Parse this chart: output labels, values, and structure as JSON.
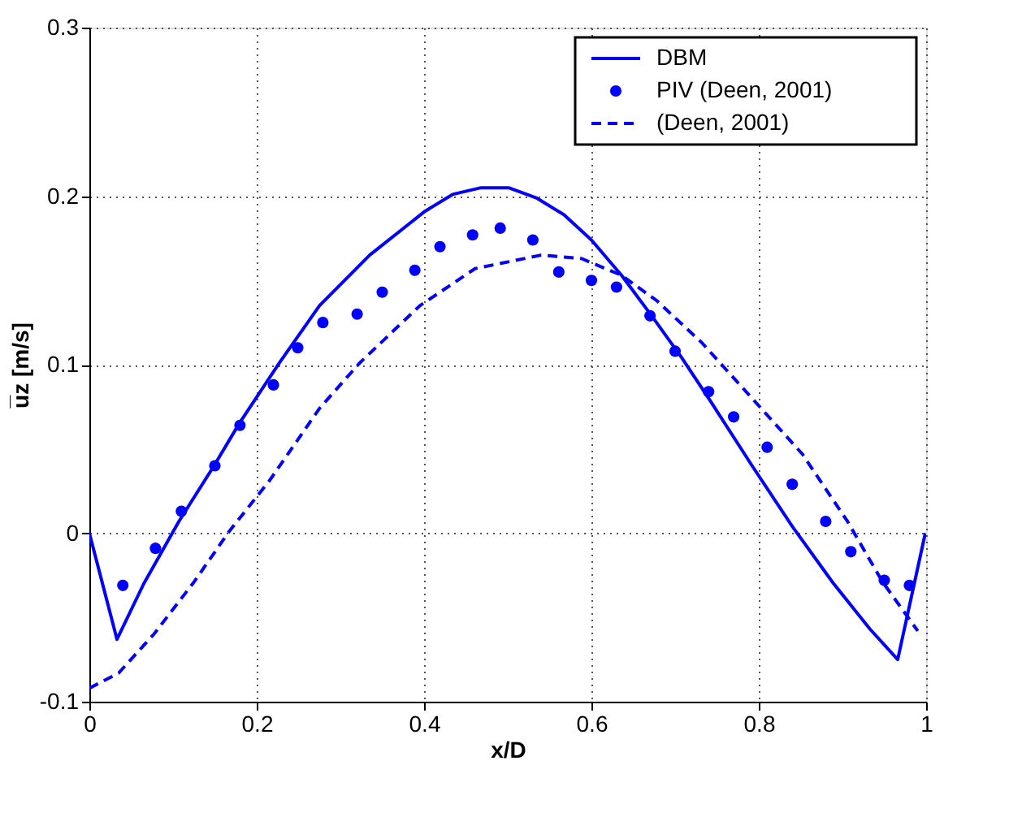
{
  "chart_data": {
    "type": "line",
    "xlabel": "x/D",
    "ylabel": "u̅z [m/s]",
    "xlim": [
      0,
      1
    ],
    "xticks": [
      0,
      0.2,
      0.4,
      0.6,
      0.8,
      1
    ],
    "ylim": [
      -0.1,
      0.3
    ],
    "yticks": [
      -0.1,
      0,
      0.1,
      0.2,
      0.3
    ],
    "grid": true,
    "legend": "top right",
    "series": [
      {
        "name": "DBM",
        "color": "#0000ff",
        "type": "line",
        "line_style": "solid",
        "x": [
          0,
          0.033,
          0.065,
          0.107,
          0.149,
          0.179,
          0.227,
          0.275,
          0.335,
          0.401,
          0.434,
          0.468,
          0.501,
          0.534,
          0.567,
          0.6,
          0.636,
          0.672,
          0.708,
          0.744,
          0.792,
          0.84,
          0.888,
          0.933,
          0.966,
          0.999
        ],
        "values": [
          0,
          -0.063,
          -0.03,
          0.007,
          0.04,
          0.065,
          0.101,
          0.135,
          0.165,
          0.191,
          0.201,
          0.205,
          0.205,
          0.199,
          0.189,
          0.174,
          0.153,
          0.129,
          0.104,
          0.077,
          0.04,
          0.004,
          -0.029,
          -0.057,
          -0.075,
          0
        ]
      },
      {
        "name": "PIV (Deen, 2001)",
        "color": "#0000ff",
        "type": "scatter",
        "marker": "circle",
        "x": [
          0.04,
          0.079,
          0.11,
          0.15,
          0.18,
          0.22,
          0.249,
          0.279,
          0.32,
          0.35,
          0.389,
          0.419,
          0.458,
          0.491,
          0.53,
          0.561,
          0.6,
          0.63,
          0.67,
          0.7,
          0.74,
          0.77,
          0.81,
          0.84,
          0.88,
          0.91,
          0.95,
          0.98
        ],
        "values": [
          -0.031,
          -0.009,
          0.013,
          0.04,
          0.064,
          0.088,
          0.11,
          0.125,
          0.13,
          0.143,
          0.156,
          0.17,
          0.177,
          0.181,
          0.174,
          0.155,
          0.15,
          0.146,
          0.129,
          0.108,
          0.084,
          0.069,
          0.051,
          0.029,
          0.007,
          -0.011,
          -0.028,
          -0.031
        ]
      },
      {
        "name": "(Deen, 2001)",
        "color": "#0000ff",
        "type": "line",
        "line_style": "dashed",
        "x": [
          0,
          0.035,
          0.077,
          0.125,
          0.167,
          0.215,
          0.275,
          0.323,
          0.395,
          0.461,
          0.54,
          0.588,
          0.636,
          0.678,
          0.732,
          0.792,
          0.852,
          0.906,
          0.948,
          0.99
        ],
        "values": [
          -0.092,
          -0.083,
          -0.06,
          -0.029,
          0.001,
          0.031,
          0.074,
          0.101,
          0.135,
          0.157,
          0.165,
          0.163,
          0.153,
          0.138,
          0.113,
          0.08,
          0.047,
          0.007,
          -0.029,
          -0.058
        ]
      }
    ]
  }
}
